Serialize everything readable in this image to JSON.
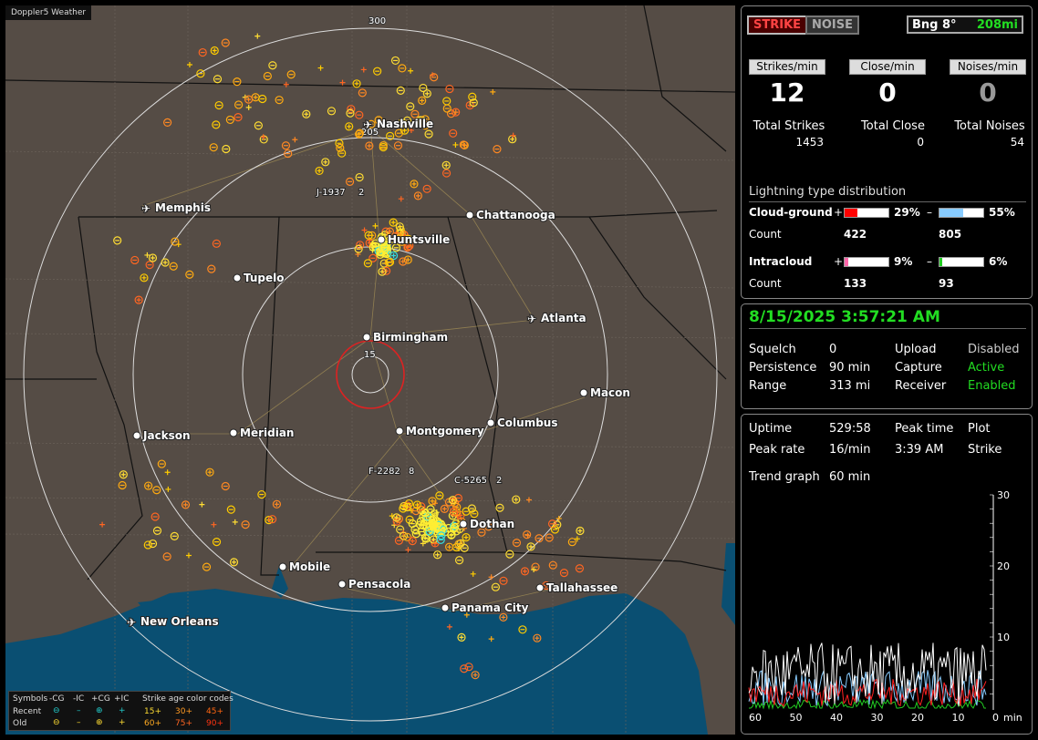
{
  "app_title": "Doppler5 Weather",
  "map": {
    "cities": [
      {
        "name": "Nashville",
        "airport": true
      },
      {
        "name": "Memphis",
        "airport": true
      },
      {
        "name": "Chattanooga",
        "airport": false
      },
      {
        "name": "Huntsville",
        "airport": false
      },
      {
        "name": "Tupelo",
        "airport": false
      },
      {
        "name": "Atlanta",
        "airport": true
      },
      {
        "name": "Birmingham",
        "airport": false
      },
      {
        "name": "Macon",
        "airport": false
      },
      {
        "name": "Jackson",
        "airport": false
      },
      {
        "name": "Meridian",
        "airport": false
      },
      {
        "name": "Montgomery",
        "airport": false
      },
      {
        "name": "Columbus",
        "airport": false
      },
      {
        "name": "Dothan",
        "airport": false
      },
      {
        "name": "Mobile",
        "airport": false
      },
      {
        "name": "Pensacola",
        "airport": false
      },
      {
        "name": "Tallahassee",
        "airport": false
      },
      {
        "name": "Panama City",
        "airport": false
      },
      {
        "name": "New Orleans",
        "airport": true
      }
    ],
    "ring_labels": [
      "300",
      "205",
      "15"
    ],
    "storm_labels": [
      "J-1937",
      "2",
      "F-2282",
      "8",
      "C-5265",
      "2"
    ]
  },
  "legend": {
    "symbols_label": "Symbols",
    "cols": [
      "-CG",
      "-IC",
      "+CG",
      "+IC"
    ],
    "age_title": "Strike age color codes",
    "recent_label": "Recent",
    "old_label": "Old",
    "recent_ages": [
      "15+",
      "30+",
      "45+"
    ],
    "old_ages": [
      "60+",
      "75+",
      "90+"
    ],
    "recent_colors": [
      "#ffdd33",
      "#ff9922",
      "#ff6611"
    ],
    "old_colors": [
      "#ffaa22",
      "#ff6622",
      "#ff3311"
    ]
  },
  "panel1": {
    "strike_btn": "STRIKE",
    "noise_btn": "NOISE",
    "bearing": "Bng 8°",
    "range": "208mi",
    "rates": [
      {
        "label": "Strikes/min",
        "value": "12"
      },
      {
        "label": "Close/min",
        "value": "0"
      },
      {
        "label": "Noises/min",
        "value": "0"
      }
    ],
    "totals": [
      {
        "label": "Total Strikes",
        "value": "1453"
      },
      {
        "label": "Total Close",
        "value": "0"
      },
      {
        "label": "Total Noises",
        "value": "54"
      }
    ],
    "dist_title": "Lightning type distribution",
    "cloud_ground": {
      "label": "Cloud-ground",
      "plus_pct": "29%",
      "minus_pct": "55%",
      "plus_frac": 0.29,
      "minus_frac": 0.55,
      "plus_count": "422",
      "minus_count": "805",
      "plus_color": "#ff0000",
      "minus_color": "#88ccff"
    },
    "intracloud": {
      "label": "Intracloud",
      "plus_pct": "9%",
      "minus_pct": "6%",
      "plus_frac": 0.09,
      "minus_frac": 0.06,
      "plus_count": "133",
      "minus_count": "93",
      "plus_color": "#ff66aa",
      "minus_color": "#22cc22"
    },
    "count_label": "Count",
    "plus_sign": "+",
    "minus_sign": "–"
  },
  "panel2": {
    "datetime": "8/15/2025 3:57:21 AM",
    "rows": [
      {
        "l1": "Squelch",
        "v1": "0",
        "l2": "Upload",
        "v2": "Disabled",
        "v2_class": "grey"
      },
      {
        "l1": "Persistence",
        "v1": "90 min",
        "l2": "Capture",
        "v2": "Active",
        "v2_class": "green"
      },
      {
        "l1": "Range",
        "v1": "313 mi",
        "l2": "Receiver",
        "v2": "Enabled",
        "v2_class": "green"
      }
    ]
  },
  "panel3": {
    "uptime_label": "Uptime",
    "uptime": "529:58",
    "peak_time_label": "Peak time",
    "peak_time": "3:39 AM",
    "plot_label": "Plot",
    "plot_value": "Strike",
    "peak_rate_label": "Peak rate",
    "peak_rate": "16/min",
    "trend_label": "Trend graph",
    "trend_value": "60 min",
    "y_ticks": [
      "30",
      "20",
      "10"
    ],
    "x_ticks": [
      "60",
      "50",
      "40",
      "30",
      "20",
      "10",
      "0"
    ],
    "x_unit": "min"
  }
}
